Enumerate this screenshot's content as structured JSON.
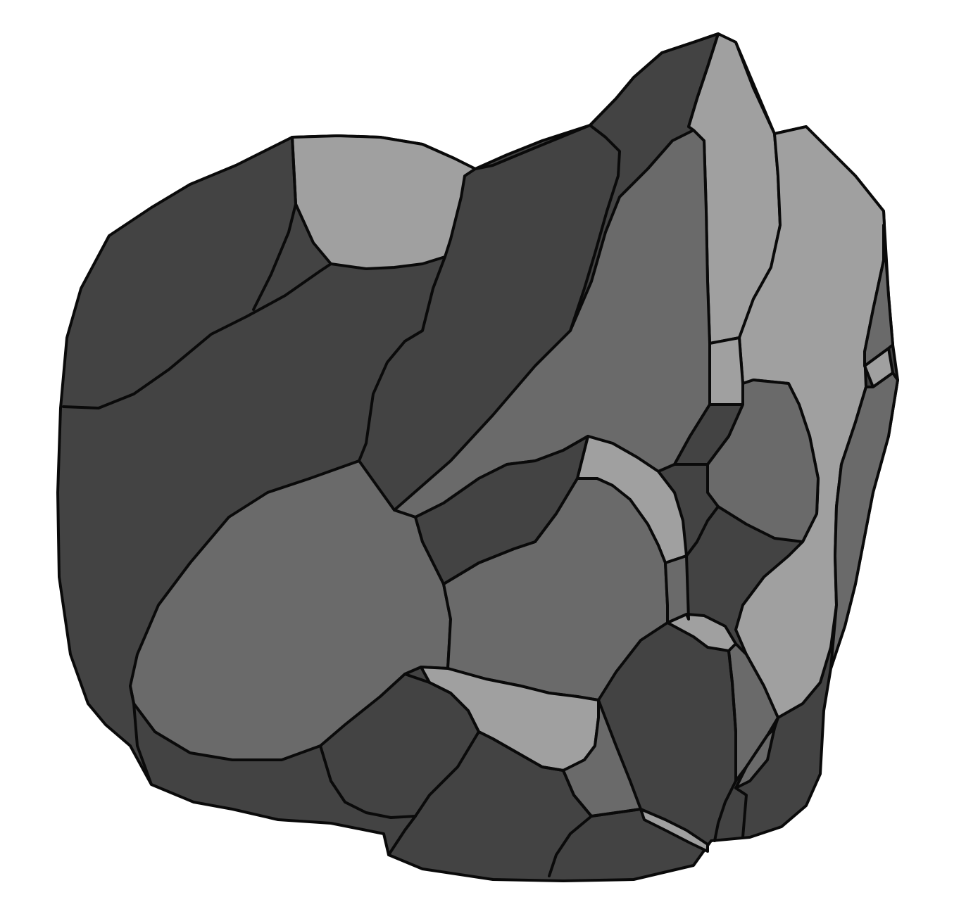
{
  "illustration": {
    "subject_icon": "rock-icon",
    "colors": {
      "dark": "#434343",
      "mid": "#6a6a6a",
      "light": "#a0a0a0",
      "outline": "#0a0a0a",
      "background": "#ffffff"
    }
  }
}
